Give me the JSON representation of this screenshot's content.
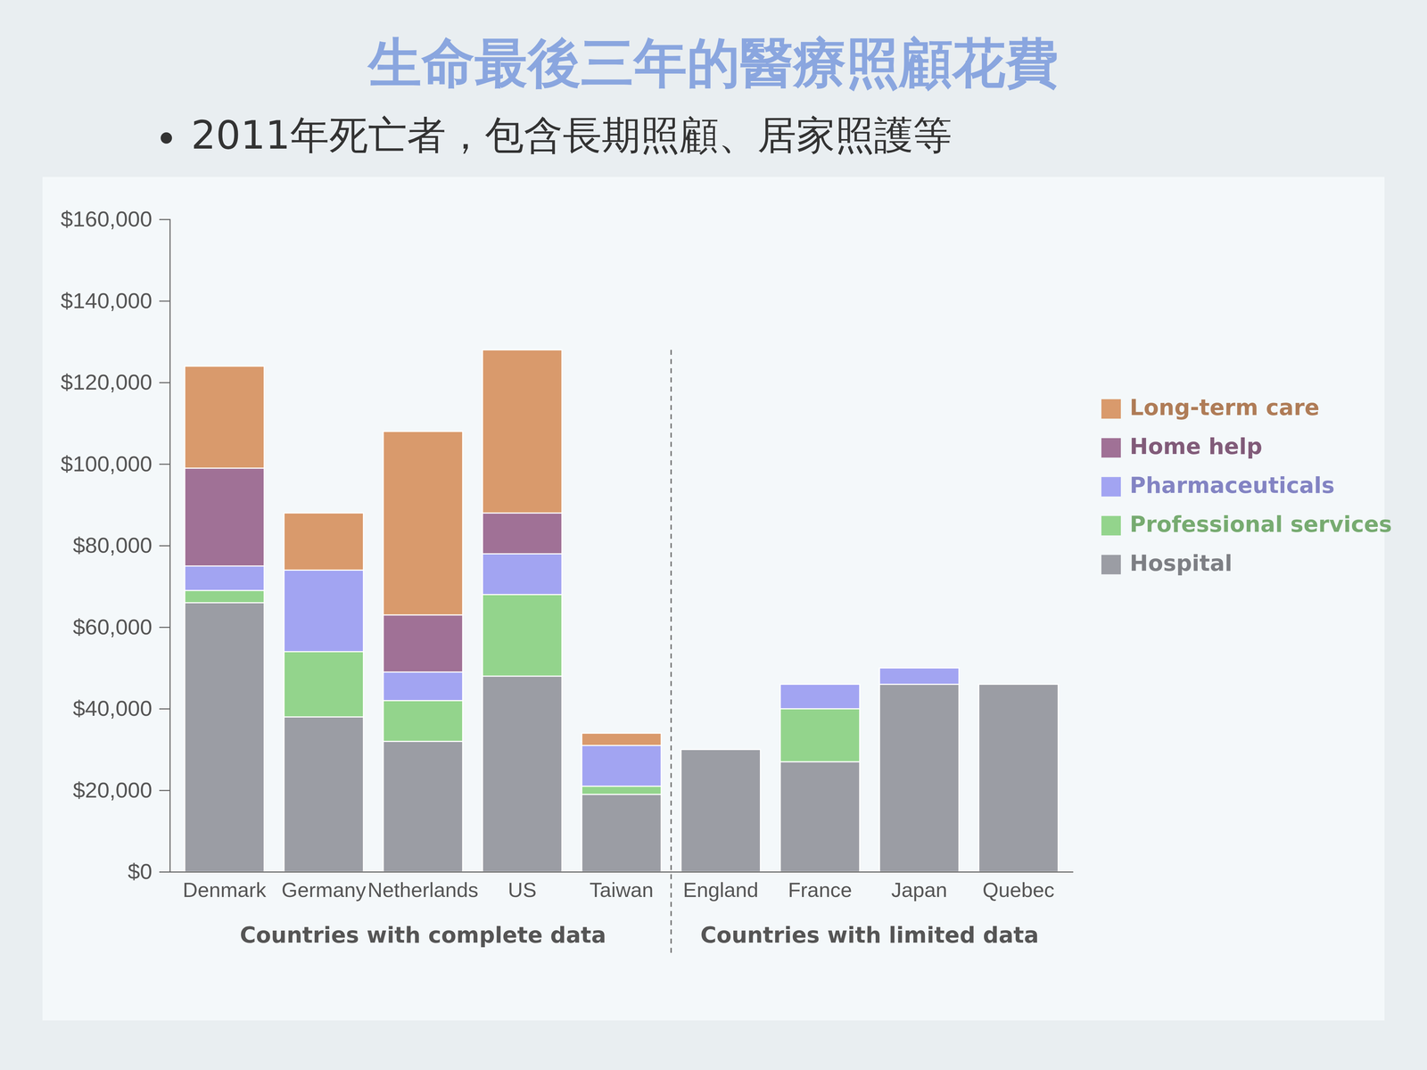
{
  "chart_data": {
    "type": "bar",
    "stacked": true,
    "grid": false,
    "legend": "right",
    "title": "生命最後三年的醫療照顧花費",
    "subtitle": "2011年死亡者，包含長期照顧、居家照護等",
    "categories": [
      "Denmark",
      "Germany",
      "Netherlands",
      "US",
      "Taiwan",
      "England",
      "France",
      "Japan",
      "Quebec"
    ],
    "groups": [
      {
        "name": "Countries with complete data",
        "categories": [
          "Denmark",
          "Germany",
          "Netherlands",
          "US",
          "Taiwan"
        ]
      },
      {
        "name": "Countries with limited data",
        "categories": [
          "England",
          "France",
          "Japan",
          "Quebec"
        ]
      }
    ],
    "series": [
      {
        "name": "Hospital",
        "color": "#9b9da4",
        "values": [
          66000,
          38000,
          32000,
          48000,
          19000,
          30000,
          27000,
          46000,
          46000
        ]
      },
      {
        "name": "Professional services",
        "color": "#93d48c",
        "values": [
          3000,
          16000,
          10000,
          20000,
          2000,
          null,
          13000,
          null,
          null
        ]
      },
      {
        "name": "Pharmaceuticals",
        "color": "#a2a4f2",
        "values": [
          6000,
          20000,
          7000,
          10000,
          10000,
          null,
          6000,
          4000,
          null
        ]
      },
      {
        "name": "Home help",
        "color": "#a07196",
        "values": [
          24000,
          0,
          14000,
          10000,
          0,
          null,
          null,
          null,
          null
        ]
      },
      {
        "name": "Long-term care",
        "color": "#d99a6c",
        "values": [
          25000,
          14000,
          45000,
          40000,
          3000,
          null,
          null,
          null,
          null
        ]
      }
    ],
    "ylim": [
      0,
      160000
    ],
    "yticks": [
      {
        "value": 0,
        "label": "$0"
      },
      {
        "value": 20000,
        "label": "$20,000"
      },
      {
        "value": 40000,
        "label": "$40,000"
      },
      {
        "value": 60000,
        "label": "$60,000"
      },
      {
        "value": 80000,
        "label": "$80,000"
      },
      {
        "value": 100000,
        "label": "$100,000"
      },
      {
        "value": 120000,
        "label": "$120,000"
      },
      {
        "value": 140000,
        "label": "$140,000"
      },
      {
        "value": 160000,
        "label": "$160,000"
      }
    ]
  }
}
